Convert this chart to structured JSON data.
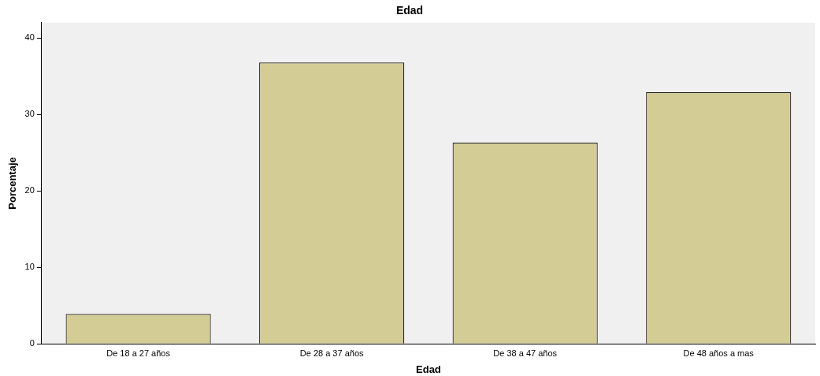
{
  "chart_data": {
    "type": "bar",
    "title": "Edad",
    "xlabel": "Edad",
    "ylabel": "Porcentaje",
    "categories": [
      "De 18 a 27 años",
      "De 28 a 37 años",
      "De 38 a 47 años",
      "De 48 años a mas"
    ],
    "values": [
      3.9,
      36.8,
      26.3,
      32.9
    ],
    "color": "#d3cd95",
    "ylim": [
      0,
      42
    ],
    "yticks": [
      0,
      10,
      20,
      30,
      40
    ],
    "grid": false,
    "legend": false
  }
}
